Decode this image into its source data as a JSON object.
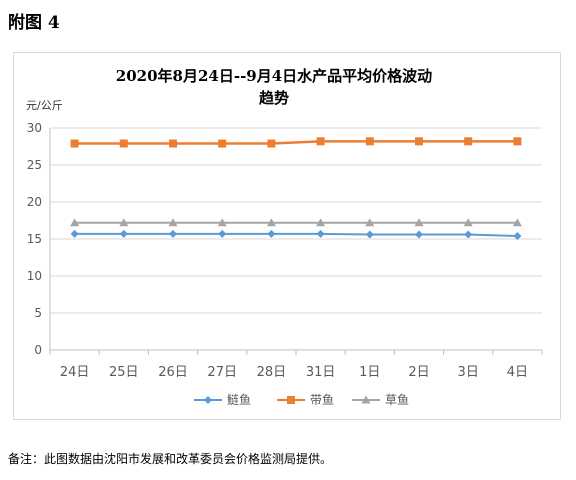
{
  "figure_label": "附图 4",
  "note": "备注：此图数据由沈阳市发展和改革委员会价格监测局提供。",
  "chart_data": {
    "type": "line",
    "title_line1": "2020年8月24日--9月4日水产品平均价格波动",
    "title_line2": "趋势",
    "ylabel": "元/公斤",
    "ylim": [
      0,
      30
    ],
    "yticks": [
      0,
      5,
      10,
      15,
      20,
      25,
      30
    ],
    "grid": true,
    "legend_position": "bottom",
    "categories": [
      "24日",
      "25日",
      "26日",
      "27日",
      "28日",
      "31日",
      "1日",
      "2日",
      "3日",
      "4日"
    ],
    "series": [
      {
        "name": "鲢鱼",
        "color": "#5b9bd5",
        "marker": "diamond",
        "values": [
          15.7,
          15.7,
          15.7,
          15.7,
          15.7,
          15.7,
          15.6,
          15.6,
          15.6,
          15.4
        ]
      },
      {
        "name": "带鱼",
        "color": "#ed7d31",
        "marker": "square",
        "values": [
          27.9,
          27.9,
          27.9,
          27.9,
          27.9,
          28.2,
          28.2,
          28.2,
          28.2,
          28.2
        ]
      },
      {
        "name": "草鱼",
        "color": "#a5a5a5",
        "marker": "triangle",
        "values": [
          17.2,
          17.2,
          17.2,
          17.2,
          17.2,
          17.2,
          17.2,
          17.2,
          17.2,
          17.2
        ]
      }
    ]
  }
}
